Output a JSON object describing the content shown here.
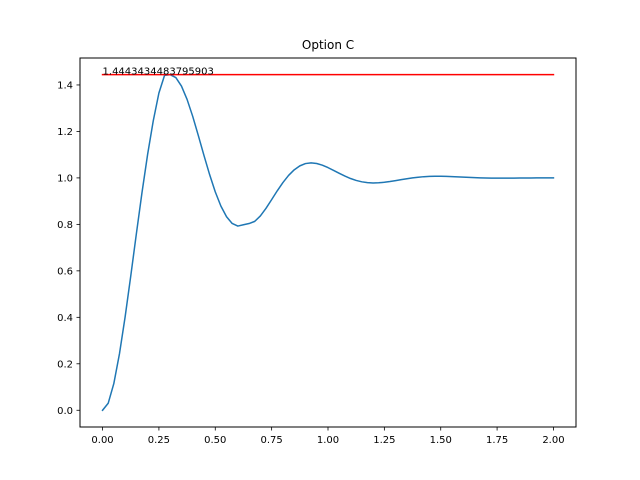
{
  "chart_data": {
    "type": "line",
    "title": "Option C",
    "xlabel": "",
    "ylabel": "",
    "xlim": [
      -0.1,
      2.1
    ],
    "ylim": [
      -0.072,
      1.516
    ],
    "grid": false,
    "x_ticks": [
      0.0,
      0.25,
      0.5,
      0.75,
      1.0,
      1.25,
      1.5,
      1.75,
      2.0
    ],
    "x_tick_labels": [
      "0.00",
      "0.25",
      "0.50",
      "0.75",
      "1.00",
      "1.25",
      "1.50",
      "1.75",
      "2.00"
    ],
    "y_ticks": [
      0.0,
      0.2,
      0.4,
      0.6,
      0.8,
      1.0,
      1.2,
      1.4
    ],
    "y_tick_labels": [
      "0.0",
      "0.2",
      "0.4",
      "0.6",
      "0.8",
      "1.0",
      "1.2",
      "1.4"
    ],
    "series": [
      {
        "color": "#1f77b4",
        "x": [
          0.0,
          0.025,
          0.05,
          0.075,
          0.1,
          0.125,
          0.15,
          0.175,
          0.2,
          0.225,
          0.25,
          0.275,
          0.3,
          0.325,
          0.35,
          0.375,
          0.4,
          0.425,
          0.45,
          0.475,
          0.5,
          0.525,
          0.55,
          0.575,
          0.6,
          0.625,
          0.65,
          0.675,
          0.7,
          0.725,
          0.75,
          0.775,
          0.8,
          0.825,
          0.85,
          0.875,
          0.9,
          0.925,
          0.95,
          0.975,
          1.0,
          1.025,
          1.05,
          1.075,
          1.1,
          1.125,
          1.15,
          1.175,
          1.2,
          1.225,
          1.25,
          1.275,
          1.3,
          1.325,
          1.35,
          1.375,
          1.4,
          1.425,
          1.45,
          1.475,
          1.5,
          1.525,
          1.55,
          1.575,
          1.6,
          1.625,
          1.65,
          1.675,
          1.7,
          1.725,
          1.75,
          1.775,
          1.8,
          1.825,
          1.85,
          1.875,
          1.9,
          1.925,
          1.95,
          1.975,
          2.0
        ],
        "values": [
          0.0,
          0.0301,
          0.1149,
          0.2427,
          0.401,
          0.5771,
          0.7593,
          0.9371,
          1.1017,
          1.2461,
          1.3654,
          1.4412,
          1.4443,
          1.4317,
          1.3951,
          1.3377,
          1.2645,
          1.1818,
          1.0962,
          1.0139,
          0.94,
          0.8787,
          0.8328,
          0.8038,
          0.7927,
          0.7984,
          0.8036,
          0.8129,
          0.8364,
          0.8692,
          0.9066,
          0.9446,
          0.9799,
          1.0105,
          1.0347,
          1.0518,
          1.0617,
          1.0648,
          1.0621,
          1.0548,
          1.0443,
          1.0321,
          1.0196,
          1.0077,
          0.9974,
          0.9891,
          0.9832,
          0.9796,
          0.9783,
          0.979,
          0.9812,
          0.9845,
          0.9884,
          0.9925,
          0.9964,
          1.0,
          1.003,
          1.0052,
          1.0066,
          1.0072,
          1.0072,
          1.0066,
          1.0057,
          1.0045,
          1.0033,
          1.0021,
          1.0011,
          1.0002,
          0.9996,
          0.9992,
          0.999,
          0.999,
          0.999,
          0.9992,
          0.9994,
          0.9996,
          0.9998,
          1.0,
          1.0001,
          1.0002,
          1.0002
        ]
      },
      {
        "color": "#ff0000",
        "x": [
          0.0,
          2.0
        ],
        "values": [
          1.4443434483795903,
          1.4443434483795903
        ]
      }
    ],
    "annotations": [
      {
        "text": "1.4443434483795903",
        "x": 0.0,
        "y": 1.4443434483795903
      }
    ]
  }
}
